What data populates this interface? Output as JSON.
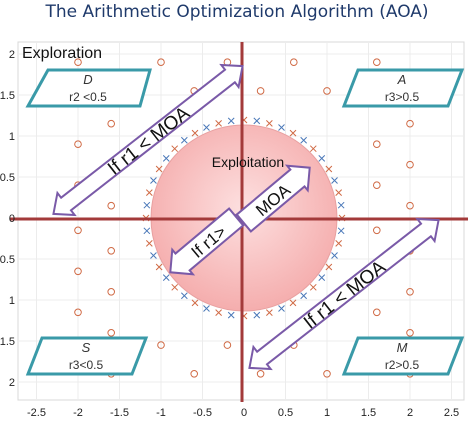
{
  "title": "The Arithmetic Optimization Algorithm (AOA)",
  "labels": {
    "exploration": "Exploration",
    "exploitation": "Exploitation",
    "arrow_top_left": "If r1 < MOA",
    "arrow_bottom_right": "If r1 < MOA",
    "arrow_center_up": "MOA",
    "arrow_center_down": "If r1>"
  },
  "operators": [
    {
      "id": "D",
      "symbol": "D",
      "condition": "r2 <0.5"
    },
    {
      "id": "A",
      "symbol": "A",
      "condition": "r3>0.5"
    },
    {
      "id": "S",
      "symbol": "S",
      "condition": "r3<0.5"
    },
    {
      "id": "M",
      "symbol": "M",
      "condition": "r2>0.5"
    }
  ],
  "axes": {
    "x_ticks": [
      "-2.5",
      "-2",
      "-1.5",
      "-1",
      "-0.5",
      "0",
      "0.5",
      "1",
      "1.5",
      "2",
      "2.5"
    ],
    "y_ticks": [
      "2",
      "1.5",
      "1",
      "0.5",
      "0",
      "0.5",
      "1",
      "1.5",
      "2"
    ]
  },
  "colors": {
    "title": "#1f3a6b",
    "axis_cross": "#a33a3a",
    "circle_fill": "#f6b8b8",
    "circle_marker": "#d06a45",
    "cross_marker_blue": "#4a78b8",
    "cross_marker_red": "#d06a45",
    "box_stroke": "#3a9aa8",
    "arrow_stroke": "#7a5aa8"
  }
}
